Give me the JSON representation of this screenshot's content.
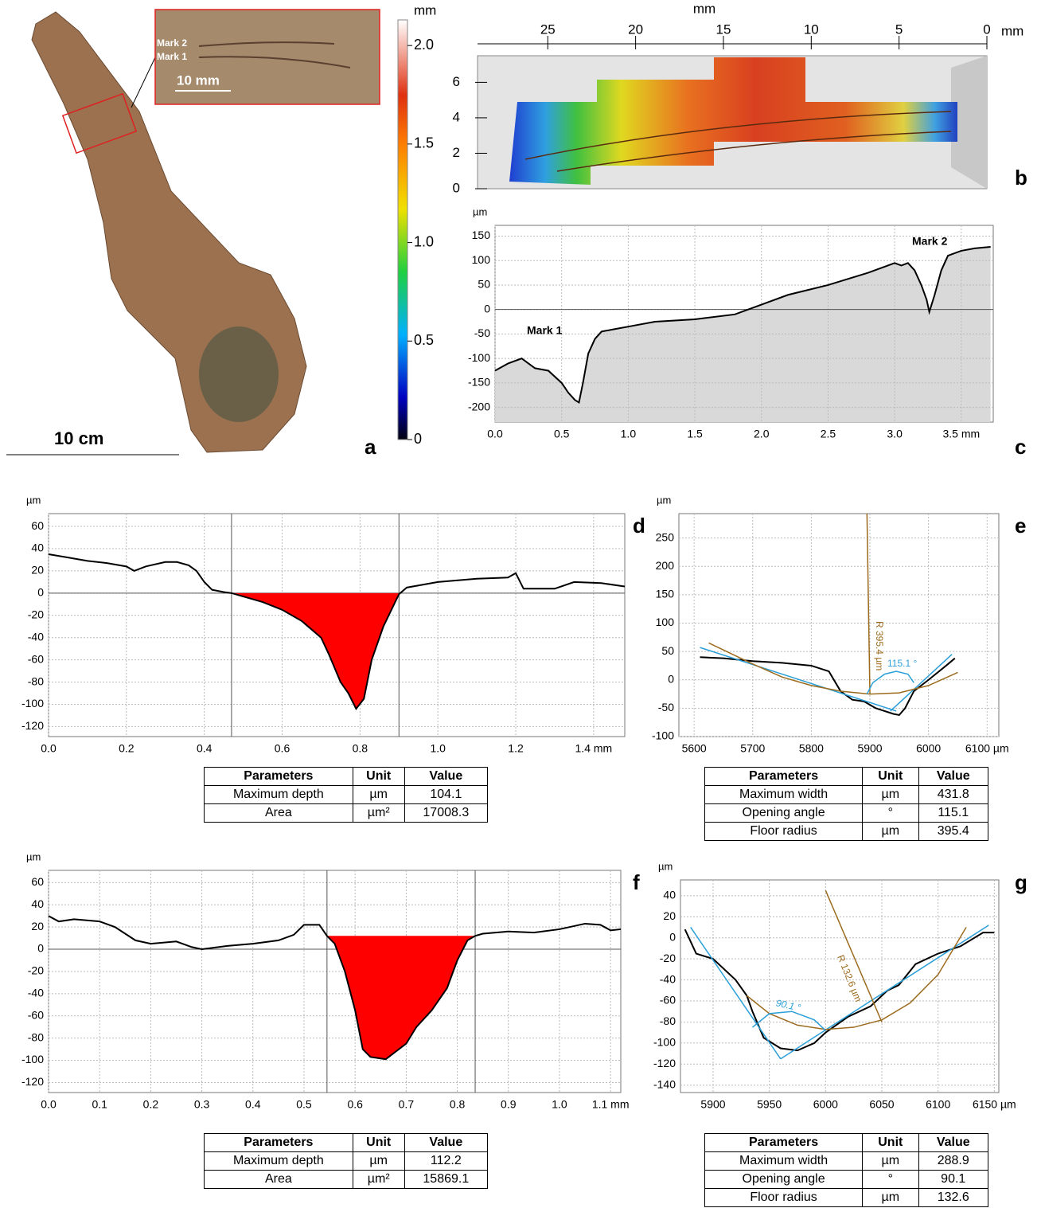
{
  "photo": {
    "mark_2": "Mark 2",
    "mark_1": "Mark 1",
    "inset_scale": "10 mm",
    "scale": "10 cm",
    "label": "a"
  },
  "colorbar": {
    "unit": "mm",
    "lim": [
      0,
      2.13
    ],
    "ticks": [
      0,
      0.5,
      {
        "value": 1,
        "label": "1.0"
      },
      1.5,
      {
        "value": 2,
        "label": "2.0"
      }
    ]
  },
  "surface": {
    "x_unit": "mm",
    "xlim": [
      29,
      0
    ],
    "xticks": [
      25,
      20,
      15,
      10,
      5,
      0
    ],
    "x_unit_end": "mm",
    "ylim": [
      0,
      7.5
    ],
    "yticks": [
      0,
      2,
      4,
      6
    ],
    "label": "b"
  },
  "chart_data": [
    {
      "type": "line",
      "label": "c",
      "y_unit": "µm",
      "annotations": [
        "Mark 1",
        "Mark 2"
      ],
      "grid": true,
      "zero_line": true,
      "area_color": "#d9d9d9",
      "xlim": [
        0,
        3.74
      ],
      "ylim": [
        -230,
        172
      ],
      "xticks": [
        {
          "value": 0,
          "label": "0.0"
        },
        0.5,
        {
          "value": 1,
          "label": "1.0"
        },
        1.5,
        {
          "value": 2,
          "label": "2.0"
        },
        2.5,
        {
          "value": 3,
          "label": "3.0"
        },
        {
          "value": 3.5,
          "label": "3.5 mm"
        }
      ],
      "yticks": [
        -200,
        -150,
        -100,
        -50,
        0,
        50,
        100,
        150
      ],
      "series": [
        {
          "color": "#000000",
          "x": [
            0,
            0.1,
            0.2,
            0.25,
            0.3,
            0.4,
            0.5,
            0.55,
            0.6,
            0.63,
            0.66,
            0.7,
            0.75,
            0.8,
            0.9,
            1.0,
            1.2,
            1.5,
            1.8,
            2.0,
            2.2,
            2.5,
            2.8,
            3.0,
            3.05,
            3.1,
            3.15,
            3.2,
            3.24,
            3.26,
            3.3,
            3.35,
            3.4,
            3.5,
            3.6,
            3.72
          ],
          "values": [
            -125,
            -110,
            -100,
            -110,
            -120,
            -125,
            -150,
            -170,
            -185,
            -190,
            -150,
            -90,
            -60,
            -45,
            -40,
            -35,
            -25,
            -20,
            -10,
            10,
            30,
            50,
            75,
            95,
            90,
            95,
            80,
            50,
            20,
            -5,
            30,
            80,
            110,
            120,
            125,
            128
          ]
        }
      ]
    },
    {
      "type": "line",
      "label": "d",
      "y_unit": "µm",
      "grid": true,
      "zero_line": true,
      "bounds": [
        0.47,
        0.9
      ],
      "fill_level": 0,
      "fill_color": "#ff0000",
      "xlim": [
        0,
        1.48
      ],
      "ylim": [
        -129,
        71.5
      ],
      "xticks": [
        {
          "value": 0,
          "label": "0.0"
        },
        0.2,
        0.4,
        0.6,
        0.8,
        {
          "value": 1,
          "label": "1.0"
        },
        1.2,
        {
          "value": 1.4,
          "label": "1.4 mm"
        }
      ],
      "yticks": [
        -120,
        -100,
        -80,
        -60,
        -40,
        -20,
        0,
        20,
        40,
        60
      ],
      "series": [
        {
          "color": "#000000",
          "x": [
            0,
            0.05,
            0.1,
            0.15,
            0.2,
            0.22,
            0.25,
            0.3,
            0.33,
            0.36,
            0.38,
            0.4,
            0.42,
            0.45,
            0.47,
            0.5,
            0.55,
            0.6,
            0.65,
            0.7,
            0.72,
            0.75,
            0.77,
            0.79,
            0.81,
            0.83,
            0.86,
            0.9,
            0.92,
            1.0,
            1.1,
            1.18,
            1.2,
            1.22,
            1.3,
            1.35,
            1.42,
            1.48
          ],
          "values": [
            35,
            32,
            29,
            27,
            24,
            20,
            24,
            28,
            28,
            25,
            20,
            10,
            3,
            1,
            0,
            -3,
            -8,
            -15,
            -25,
            -40,
            -55,
            -80,
            -90,
            -104,
            -95,
            -60,
            -30,
            -1,
            5,
            10,
            13,
            14,
            18,
            4,
            4,
            10,
            9,
            6
          ]
        }
      ]
    },
    {
      "type": "line",
      "label": "e",
      "y_unit": "µm",
      "grid": true,
      "annotations": [
        "R 395.4 µm",
        "115.1 °"
      ],
      "xlim": [
        5574,
        6120
      ],
      "ylim": [
        -100,
        293
      ],
      "xticks": [
        5600,
        5700,
        5800,
        5900,
        6000,
        {
          "value": 6100,
          "label": "6100 µm"
        }
      ],
      "yticks": [
        -100,
        -50,
        0,
        50,
        100,
        150,
        200,
        250
      ],
      "series": [
        {
          "color": "#000000",
          "x": [
            5610,
            5650,
            5700,
            5750,
            5800,
            5830,
            5850,
            5870,
            5890,
            5910,
            5940,
            5950,
            5960,
            5975,
            6000,
            6030,
            6045
          ],
          "values": [
            40,
            38,
            33,
            30,
            25,
            15,
            -20,
            -35,
            -38,
            -50,
            -60,
            -62,
            -50,
            -20,
            0,
            25,
            38
          ]
        },
        {
          "color": "#2a9fd8",
          "x": [
            5610,
            5945
          ],
          "values": [
            57,
            -55
          ]
        },
        {
          "color": "#2a9fd8",
          "x": [
            5935,
            6040
          ],
          "values": [
            -55,
            45
          ]
        },
        {
          "color": "#9c6b1e",
          "x": [
            5625,
            5700,
            5750,
            5800,
            5850,
            5900,
            5950,
            6000,
            6050
          ],
          "values": [
            65,
            28,
            5,
            -10,
            -20,
            -25,
            -23,
            -10,
            13
          ]
        },
        {
          "color": "#9c6b1e",
          "x": [
            5900,
            5895
          ],
          "values": [
            -25,
            293
          ]
        },
        {
          "color": "#2a9fd8",
          "x": [
            5895,
            5905,
            5925,
            5945,
            5965,
            5975
          ],
          "values": [
            -25,
            -5,
            10,
            15,
            10,
            -5
          ]
        }
      ]
    },
    {
      "type": "line",
      "label": "f",
      "y_unit": "µm",
      "grid": true,
      "zero_line": true,
      "bounds": [
        0.545,
        0.835
      ],
      "fill_level": 12,
      "fill_color": "#ff0000",
      "xlim": [
        0,
        1.12
      ],
      "ylim": [
        -129,
        71
      ],
      "xticks": [
        {
          "value": 0,
          "label": "0.0"
        },
        0.1,
        0.2,
        0.3,
        0.4,
        0.5,
        0.6,
        0.7,
        0.8,
        0.9,
        {
          "value": 1,
          "label": "1.0"
        },
        {
          "value": 1.1,
          "label": "1.1 mm"
        }
      ],
      "yticks": [
        -120,
        -100,
        -80,
        -60,
        -40,
        -20,
        0,
        20,
        40,
        60
      ],
      "series": [
        {
          "color": "#000000",
          "x": [
            0,
            0.02,
            0.05,
            0.1,
            0.13,
            0.17,
            0.2,
            0.25,
            0.28,
            0.3,
            0.35,
            0.4,
            0.45,
            0.48,
            0.5,
            0.53,
            0.545,
            0.56,
            0.58,
            0.6,
            0.615,
            0.63,
            0.66,
            0.7,
            0.72,
            0.75,
            0.78,
            0.8,
            0.82,
            0.835,
            0.85,
            0.9,
            0.95,
            1.0,
            1.05,
            1.08,
            1.1,
            1.12
          ],
          "values": [
            30,
            25,
            27,
            25,
            20,
            8,
            5,
            7,
            2,
            0,
            3,
            5,
            8,
            13,
            22,
            22,
            12,
            5,
            -20,
            -55,
            -90,
            -97,
            -99,
            -85,
            -70,
            -55,
            -35,
            -10,
            8,
            12,
            14,
            16,
            15,
            18,
            23,
            22,
            17,
            18
          ]
        }
      ]
    },
    {
      "type": "line",
      "label": "g",
      "y_unit": "µm",
      "grid": true,
      "annotations": [
        "R 132.6 µm",
        "90.1 °"
      ],
      "xlim": [
        5871,
        6154
      ],
      "ylim": [
        -147,
        55
      ],
      "xticks": [
        5900,
        5950,
        6000,
        6050,
        6100,
        {
          "value": 6150,
          "label": "6150 µm"
        }
      ],
      "yticks": [
        -140,
        -120,
        -100,
        -80,
        -60,
        -40,
        -20,
        0,
        20,
        40
      ],
      "series": [
        {
          "color": "#000000",
          "x": [
            5875,
            5885,
            5900,
            5920,
            5930,
            5935,
            5945,
            5960,
            5975,
            5990,
            6000,
            6020,
            6040,
            6055,
            6065,
            6080,
            6100,
            6120,
            6140,
            6150
          ],
          "values": [
            8,
            -15,
            -20,
            -40,
            -55,
            -70,
            -95,
            -105,
            -107,
            -100,
            -90,
            -75,
            -65,
            -50,
            -45,
            -25,
            -15,
            -8,
            5,
            5
          ]
        },
        {
          "color": "#2a9fd8",
          "x": [
            5880,
            5960
          ],
          "values": [
            10,
            -115
          ]
        },
        {
          "color": "#2a9fd8",
          "x": [
            5960,
            6145
          ],
          "values": [
            -115,
            12
          ]
        },
        {
          "color": "#9c6b1e",
          "x": [
            5930,
            5950,
            5975,
            6000,
            6025,
            6050,
            6075,
            6100,
            6125
          ],
          "values": [
            -55,
            -72,
            -83,
            -87,
            -85,
            -78,
            -62,
            -35,
            10
          ]
        },
        {
          "color": "#9c6b1e",
          "x": [
            6000,
            6050
          ],
          "values": [
            45,
            -80
          ]
        },
        {
          "color": "#2a9fd8",
          "x": [
            5935,
            5950,
            5970,
            5990,
            6000
          ],
          "values": [
            -85,
            -72,
            -70,
            -78,
            -88
          ]
        }
      ]
    }
  ],
  "tables": [
    {
      "header": [
        "Parameters",
        "Unit",
        "Value"
      ],
      "rows": [
        [
          "Maximum depth",
          "µm",
          104.1
        ],
        [
          "Area",
          "µm²",
          17008.3
        ]
      ]
    },
    {
      "header": [
        "Parameters",
        "Unit",
        "Value"
      ],
      "rows": [
        [
          "Maximum width",
          "µm",
          431.8
        ],
        [
          "Opening angle",
          "°",
          115.1
        ],
        [
          "Floor radius",
          "µm",
          395.4
        ]
      ]
    },
    {
      "header": [
        "Parameters",
        "Unit",
        "Value"
      ],
      "rows": [
        [
          "Maximum depth",
          "µm",
          112.2
        ],
        [
          "Area",
          "µm²",
          15869.1
        ]
      ]
    },
    {
      "header": [
        "Parameters",
        "Unit",
        "Value"
      ],
      "rows": [
        [
          "Maximum width",
          "µm",
          288.9
        ],
        [
          "Opening angle",
          "°",
          90.1
        ],
        [
          "Floor radius",
          "µm",
          132.6
        ]
      ]
    }
  ]
}
